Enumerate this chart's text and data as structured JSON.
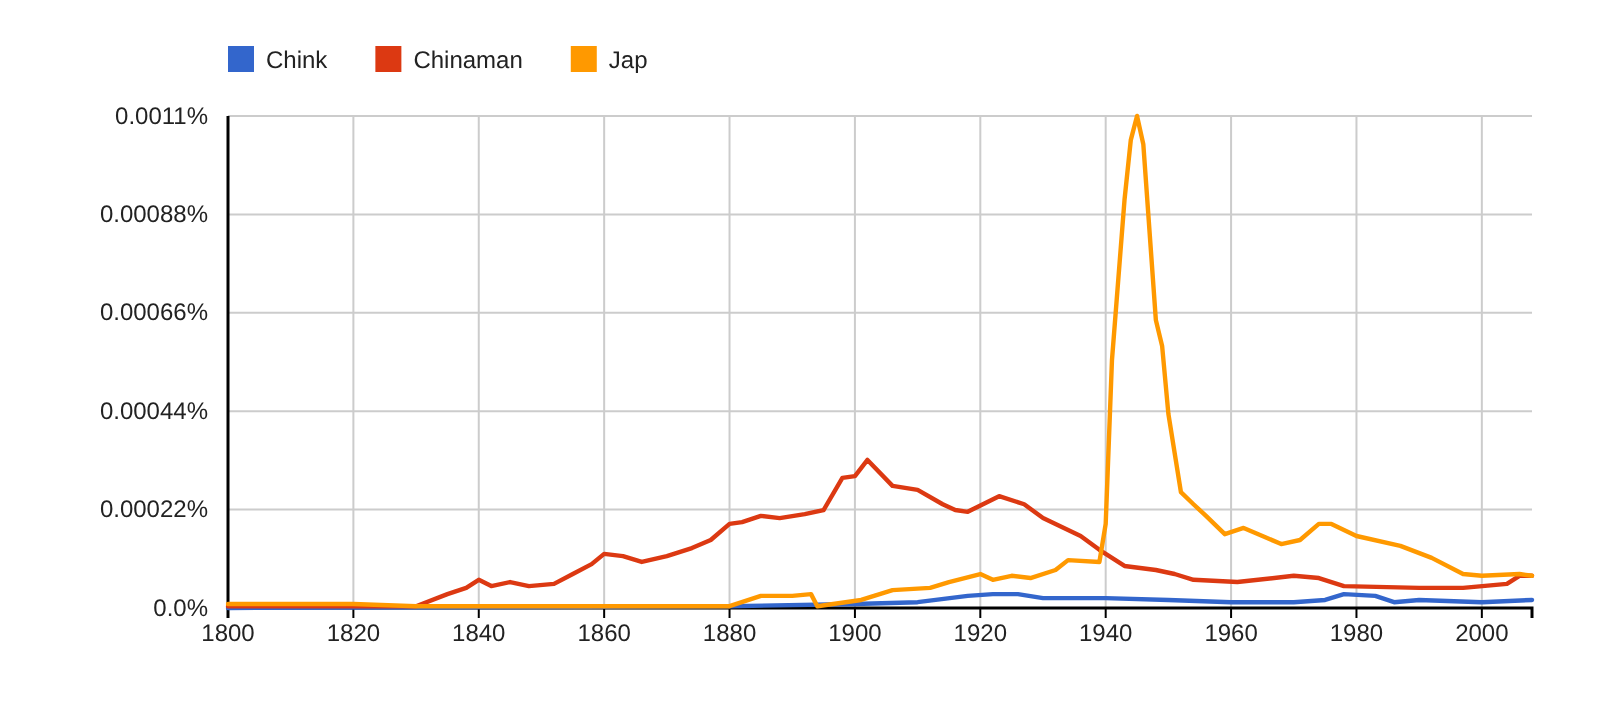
{
  "chart_data": {
    "type": "line",
    "legend": "top left",
    "grid": true,
    "xlim": [
      1800,
      2008
    ],
    "xticks": [
      1800,
      1820,
      1840,
      1860,
      1880,
      1900,
      1920,
      1940,
      1960,
      1980,
      2000
    ],
    "ylim": [
      0,
      0.0011
    ],
    "yticks": [
      {
        "value": 0,
        "label": "0.0%"
      },
      {
        "value": 0.00022,
        "label": "0.00022%"
      },
      {
        "value": 0.00044,
        "label": "0.00044%"
      },
      {
        "value": 0.00066,
        "label": "0.00066%"
      },
      {
        "value": 0.00088,
        "label": "0.00088%"
      },
      {
        "value": 0.0011,
        "label": "0.0011%"
      }
    ],
    "series": [
      {
        "name": "Chink",
        "color": "#3366cc",
        "x": [
          1800,
          1880,
          1900,
          1910,
          1918,
          1922,
          1926,
          1930,
          1940,
          1950,
          1960,
          1970,
          1975,
          1978,
          1983,
          1986,
          1990,
          2000,
          2008
        ],
        "values": [
          0,
          4e-06,
          9e-06,
          1.3e-05,
          2.7e-05,
          3.1e-05,
          3.1e-05,
          2.2e-05,
          2.2e-05,
          1.8e-05,
          1.3e-05,
          1.3e-05,
          1.8e-05,
          3.1e-05,
          2.7e-05,
          1.3e-05,
          1.8e-05,
          1.3e-05,
          1.8e-05
        ]
      },
      {
        "name": "Chinaman",
        "color": "#dc3912",
        "x": [
          1800,
          1830,
          1835,
          1838,
          1840,
          1842,
          1845,
          1848,
          1852,
          1855,
          1858,
          1860,
          1863,
          1866,
          1870,
          1874,
          1877,
          1880,
          1882,
          1885,
          1888,
          1892,
          1895,
          1898,
          1900,
          1902,
          1906,
          1910,
          1914,
          1916,
          1918,
          1923,
          1927,
          1930,
          1936,
          1939,
          1943,
          1948,
          1951,
          1954,
          1961,
          1970,
          1974,
          1978,
          1990,
          1997,
          2004,
          2006,
          2008
        ],
        "values": [
          4e-06,
          4e-06,
          3.1e-05,
          4.5e-05,
          6.3e-05,
          4.9e-05,
          5.8e-05,
          4.9e-05,
          5.4e-05,
          7.6e-05,
          9.8e-05,
          0.000121,
          0.000116,
          0.000103,
          0.000116,
          0.000134,
          0.000152,
          0.000188,
          0.000192,
          0.000206,
          0.000201,
          0.00021,
          0.000219,
          0.000291,
          0.000295,
          0.000331,
          0.000273,
          0.000264,
          0.000232,
          0.000219,
          0.000215,
          0.00025,
          0.000232,
          0.000201,
          0.000161,
          0.00013,
          9.4e-05,
          8.5e-05,
          7.6e-05,
          6.3e-05,
          5.8e-05,
          7.2e-05,
          6.7e-05,
          4.9e-05,
          4.5e-05,
          4.5e-05,
          5.4e-05,
          7.2e-05,
          7.2e-05
        ]
      },
      {
        "name": "Jap",
        "color": "#ff9900",
        "x": [
          1800,
          1820,
          1830,
          1850,
          1880,
          1885,
          1890,
          1893,
          1894,
          1901,
          1906,
          1912,
          1915,
          1920,
          1922,
          1925,
          1928,
          1932,
          1934,
          1939,
          1940,
          1941,
          1943,
          1944,
          1945,
          1946,
          1948,
          1949,
          1950,
          1952,
          1954,
          1956,
          1959,
          1962,
          1965,
          1968,
          1971,
          1974,
          1976,
          1980,
          1987,
          1992,
          1997,
          2000,
          2006,
          2008
        ],
        "values": [
          9e-06,
          9e-06,
          4e-06,
          4e-06,
          4e-06,
          2.7e-05,
          2.7e-05,
          3.1e-05,
          4e-06,
          1.8e-05,
          4e-05,
          4.5e-05,
          5.8e-05,
          7.6e-05,
          6.3e-05,
          7.2e-05,
          6.7e-05,
          8.5e-05,
          0.000107,
          0.000103,
          0.000188,
          0.000554,
          0.000912,
          0.001046,
          0.0011,
          0.001037,
          0.000644,
          0.000586,
          0.000434,
          0.000259,
          0.000232,
          0.000206,
          0.000165,
          0.000179,
          0.000161,
          0.000143,
          0.000152,
          0.000188,
          0.000188,
          0.000161,
          0.000139,
          0.000112,
          7.6e-05,
          7.2e-05,
          7.6e-05,
          7.2e-05
        ]
      }
    ]
  }
}
